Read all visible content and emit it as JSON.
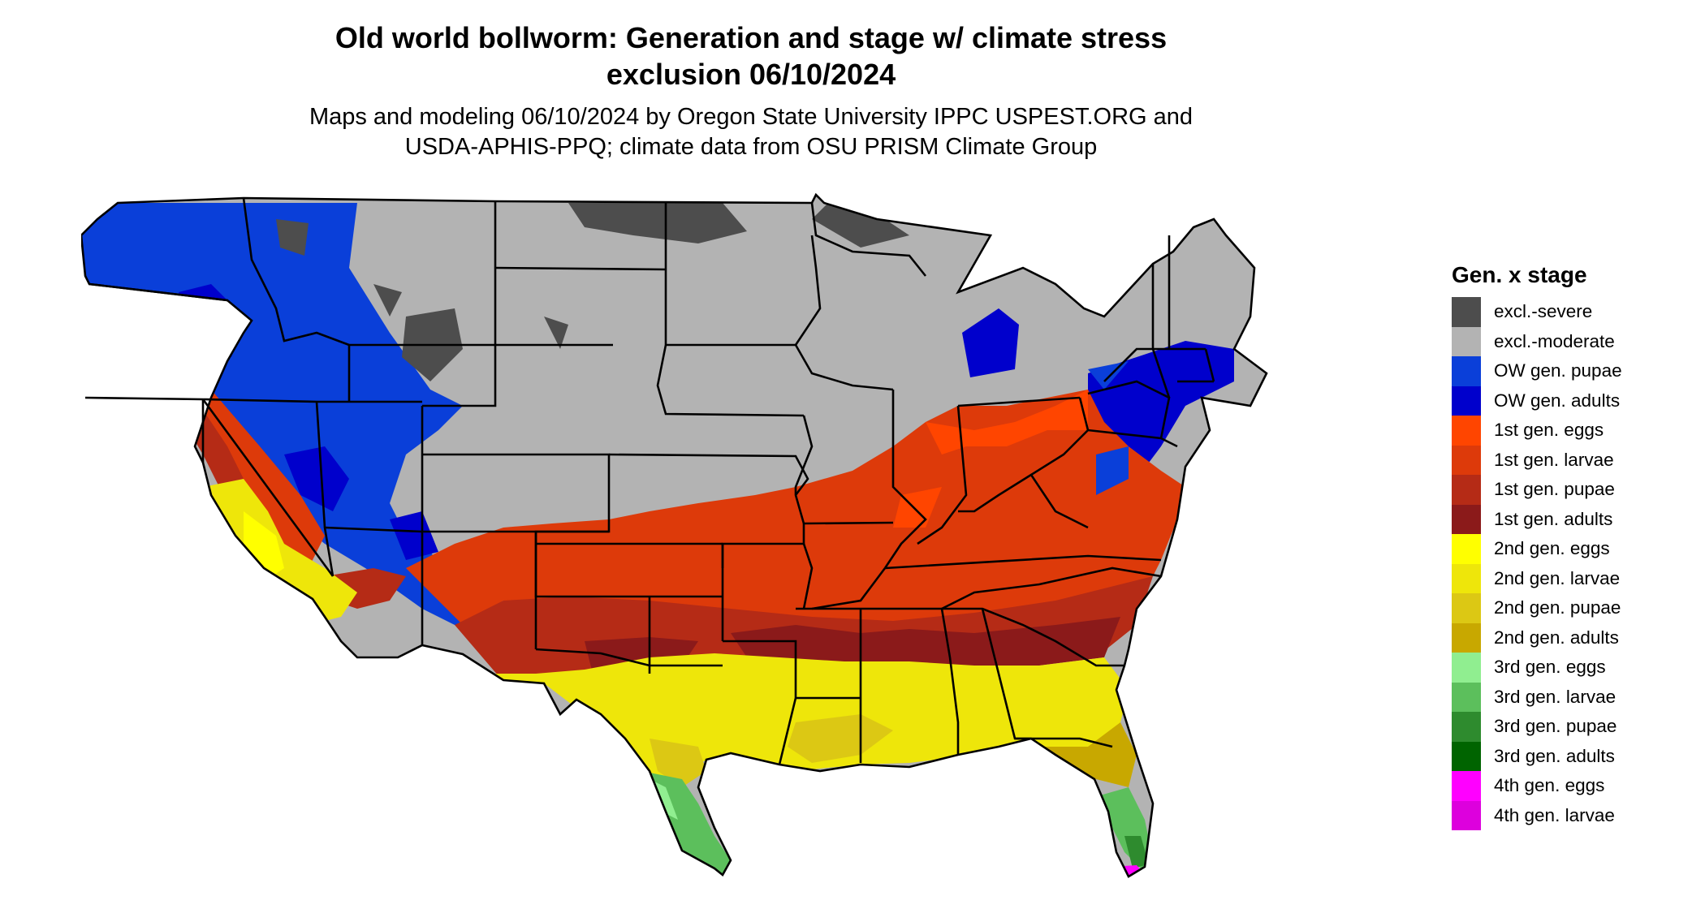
{
  "title_lines": [
    "Old world bollworm: Generation and stage w/ climate stress",
    "exclusion 06/10/2024"
  ],
  "subtitle_lines": [
    "Maps and modeling 06/10/2024 by Oregon State University IPPC USPEST.ORG and",
    "USDA-APHIS-PPQ; climate data from OSU PRISM Climate Group"
  ],
  "legend": {
    "title": "Gen. x stage",
    "items": [
      {
        "label": "excl.-severe",
        "color": "#4d4d4d"
      },
      {
        "label": "excl.-moderate",
        "color": "#b3b3b3"
      },
      {
        "label": "OW gen. pupae",
        "color": "#0a3fd9"
      },
      {
        "label": "OW gen. adults",
        "color": "#0000cc"
      },
      {
        "label": "1st gen. eggs",
        "color": "#ff4500"
      },
      {
        "label": "1st gen. larvae",
        "color": "#dd3a0a"
      },
      {
        "label": "1st gen. pupae",
        "color": "#b52b16"
      },
      {
        "label": "1st gen. adults",
        "color": "#8b1a1a"
      },
      {
        "label": "2nd gen. eggs",
        "color": "#ffff00"
      },
      {
        "label": "2nd gen. larvae",
        "color": "#eee60a"
      },
      {
        "label": "2nd gen. pupae",
        "color": "#dcc814"
      },
      {
        "label": "2nd gen. adults",
        "color": "#c8a800"
      },
      {
        "label": "3rd gen. eggs",
        "color": "#90ee90"
      },
      {
        "label": "3rd gen. larvae",
        "color": "#5cbf5c"
      },
      {
        "label": "3rd gen. pupae",
        "color": "#2e8b2e"
      },
      {
        "label": "3rd gen. adults",
        "color": "#006400"
      },
      {
        "label": "4th gen. eggs",
        "color": "#ff00ff"
      },
      {
        "label": "4th gen. larvae",
        "color": "#dd00dd"
      }
    ]
  }
}
